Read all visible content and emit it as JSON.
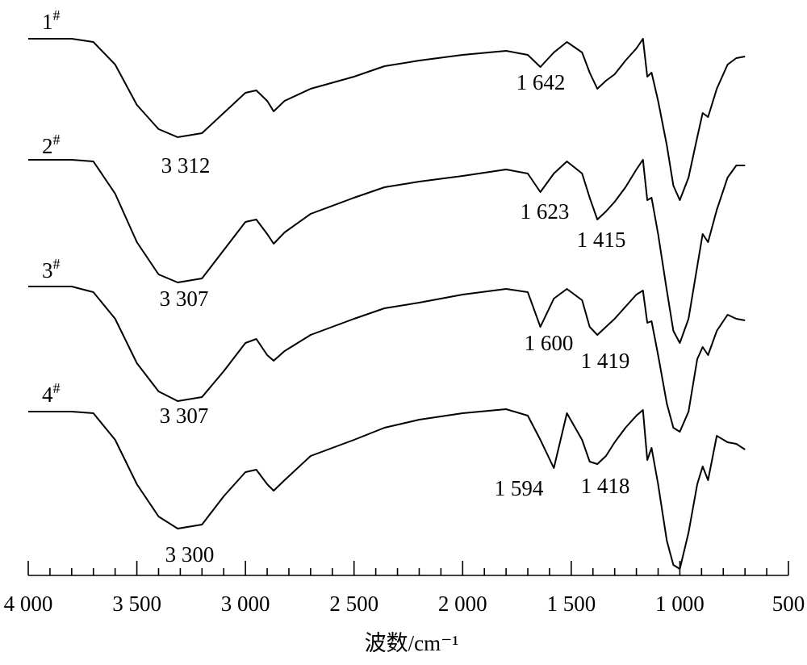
{
  "chart_data": {
    "type": "line",
    "xlabel": "波数/cm⁻¹",
    "xlim": [
      4000,
      500
    ],
    "xticks": [
      {
        "value": 4000,
        "label": "4 000"
      },
      {
        "value": 3500,
        "label": "3 500"
      },
      {
        "value": 3000,
        "label": "3 000"
      },
      {
        "value": 2500,
        "label": "2 500"
      },
      {
        "value": 2000,
        "label": "2 000"
      },
      {
        "value": 1500,
        "label": "1 500"
      },
      {
        "value": 1000,
        "label": "1 000"
      },
      500
    ],
    "xminorticks": [
      3900,
      3800,
      3700,
      3600,
      3400,
      3300,
      3200,
      3100,
      2900,
      2800,
      2700,
      2600,
      2400,
      2300,
      2200,
      2100,
      1900,
      1800,
      1700,
      1600,
      1400,
      1300,
      1200,
      1100,
      900,
      800,
      700,
      600
    ],
    "ylim": [
      0,
      700
    ],
    "x": [
      4000,
      3800,
      3700,
      3600,
      3500,
      3400,
      3312,
      3200,
      3100,
      3000,
      2950,
      2900,
      2870,
      2820,
      2700,
      2500,
      2360,
      2200,
      2000,
      1800,
      1700,
      1642,
      1580,
      1520,
      1450,
      1415,
      1380,
      1340,
      1300,
      1250,
      1200,
      1170,
      1150,
      1130,
      1100,
      1060,
      1030,
      1000,
      960,
      920,
      895,
      870,
      830,
      780,
      740,
      700
    ],
    "series": [
      {
        "name": "1#",
        "color": "#000000",
        "values": [
          665,
          665,
          661,
          633,
          583,
          553,
          543,
          548,
          573,
          598,
          601,
          588,
          575,
          588,
          603,
          618,
          631,
          638,
          645,
          650,
          645,
          630,
          648,
          661,
          648,
          623,
          603,
          613,
          621,
          638,
          653,
          665,
          618,
          623,
          588,
          533,
          483,
          465,
          493,
          543,
          573,
          568,
          603,
          633,
          641,
          643
        ]
      },
      {
        "name": "2#",
        "color": "#000000",
        "values": [
          515,
          515,
          513,
          473,
          413,
          373,
          363,
          368,
          403,
          438,
          441,
          423,
          411,
          425,
          448,
          468,
          481,
          488,
          495,
          503,
          498,
          475,
          498,
          513,
          498,
          468,
          441,
          451,
          463,
          481,
          503,
          515,
          465,
          468,
          423,
          353,
          303,
          288,
          318,
          383,
          423,
          413,
          453,
          493,
          508,
          508
        ]
      },
      {
        "name": "3#",
        "color": "#000000",
        "values": [
          358,
          358,
          351,
          318,
          263,
          228,
          216,
          221,
          253,
          288,
          293,
          273,
          266,
          278,
          298,
          318,
          331,
          338,
          348,
          355,
          351,
          308,
          343,
          355,
          341,
          308,
          298,
          308,
          318,
          333,
          348,
          353,
          313,
          315,
          273,
          213,
          183,
          178,
          203,
          268,
          283,
          273,
          303,
          323,
          318,
          316
        ]
      },
      {
        "name": "4#",
        "color": "#000000",
        "values": [
          203,
          203,
          201,
          168,
          113,
          73,
          58,
          63,
          98,
          128,
          131,
          113,
          105,
          118,
          148,
          168,
          183,
          193,
          201,
          206,
          198,
          168,
          133,
          201,
          168,
          141,
          138,
          148,
          165,
          183,
          198,
          205,
          143,
          158,
          113,
          43,
          13,
          8,
          53,
          113,
          135,
          118,
          173,
          165,
          163,
          156
        ]
      }
    ],
    "annotations": [
      "3 312",
      "1 642",
      "3 307",
      "1 623",
      "1 415",
      "3 307",
      "1 600",
      "1 419",
      "1 594",
      "1 418",
      "3 300"
    ]
  }
}
